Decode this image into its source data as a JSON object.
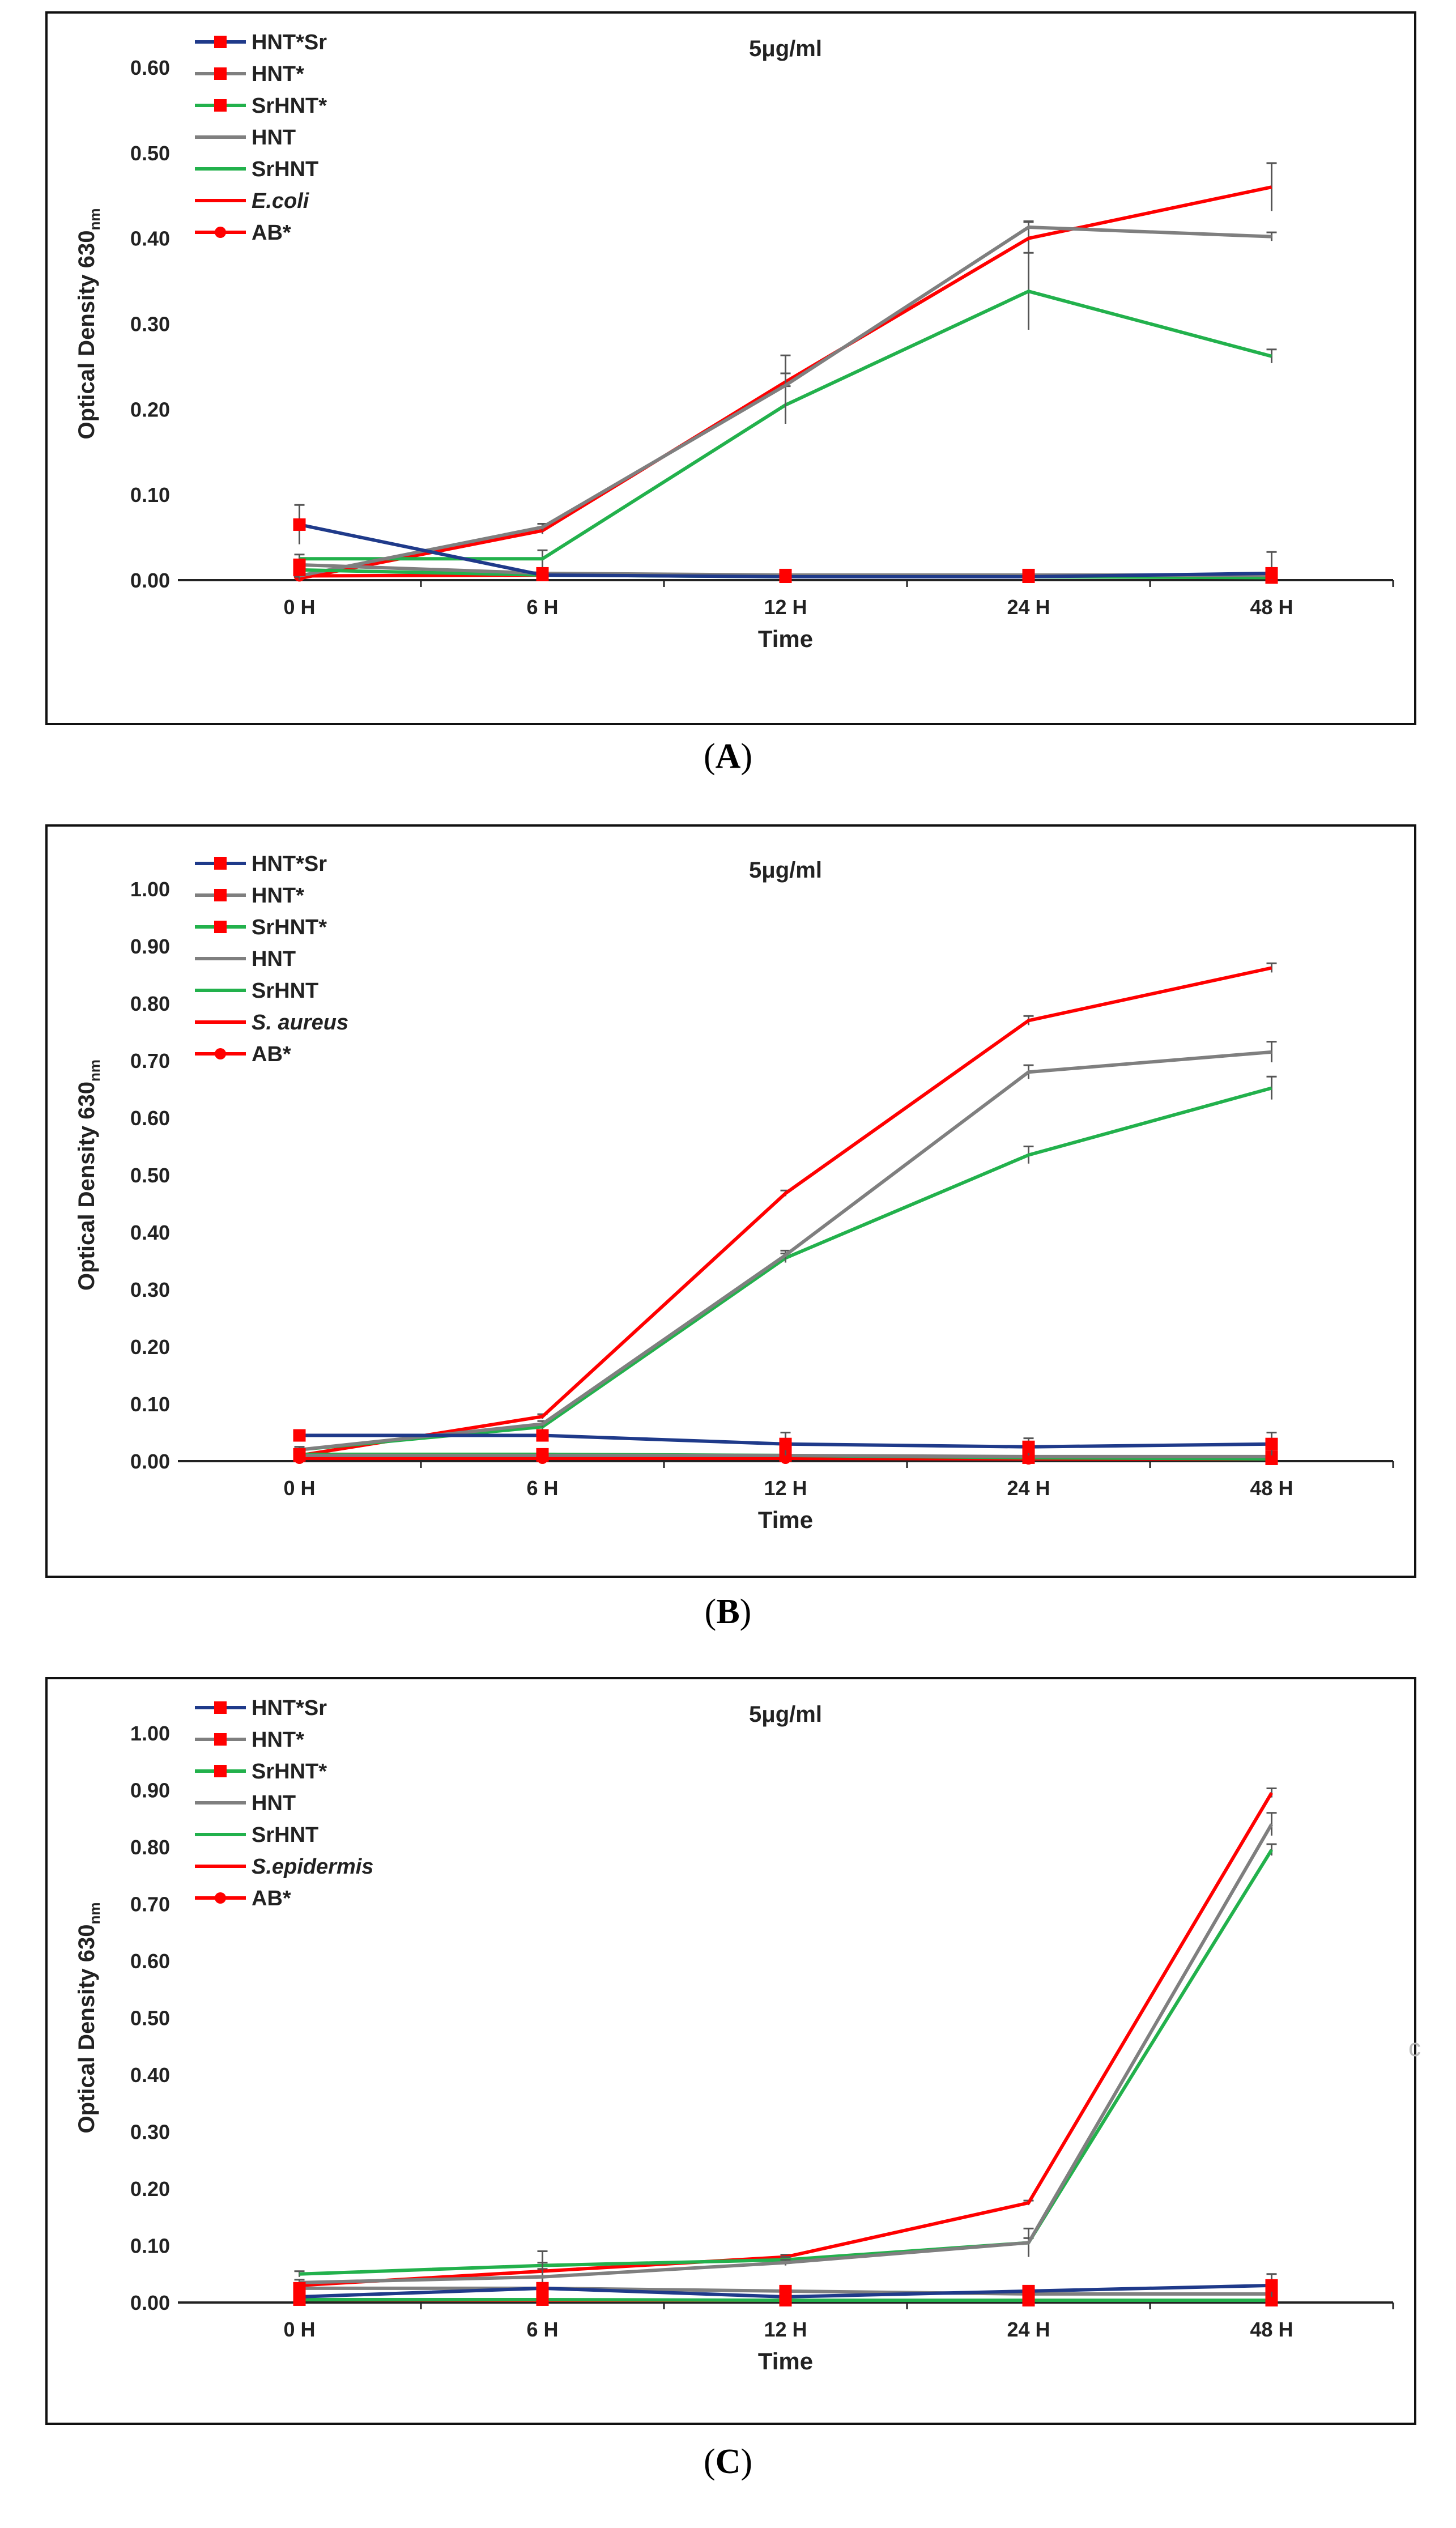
{
  "figure": {
    "captions": [
      {
        "open": "(",
        "letter": "A",
        "close": ")"
      },
      {
        "open": "(",
        "letter": "B",
        "close": ")"
      },
      {
        "open": "(",
        "letter": "C",
        "close": ")"
      }
    ],
    "stray_mark": "c"
  },
  "colors": {
    "HNT*Sr": "#1f3a8a",
    "HNT*": "#7f7f7f",
    "SrHNT*": "#22b14c",
    "HNT": "#7f7f7f",
    "SrHNT": "#22b14c",
    "bacteria": "#ff0000",
    "AB*": "#ff0000",
    "marker": "#ff0000",
    "errorbar": "#555555"
  },
  "chart_data": [
    {
      "type": "line",
      "title": "5μg/ml",
      "xlabel": "Time",
      "ylabel": "Optical Density 630",
      "ylabel_sub": "nm",
      "ylim": [
        0,
        0.6
      ],
      "yticks": [
        "0.00",
        "0.10",
        "0.20",
        "0.30",
        "0.40",
        "0.50",
        "0.60"
      ],
      "categories": [
        "0 H",
        "6 H",
        "12 H",
        "24 H",
        "48 H"
      ],
      "legend": [
        "HNT*Sr",
        "HNT*",
        "SrHNT*",
        "HNT",
        "SrHNT",
        "E.coli",
        "AB*"
      ],
      "series": [
        {
          "name": "HNT*Sr",
          "key": "HNT*Sr",
          "marker": "square",
          "italic": false,
          "values": [
            0.065,
            0.006,
            0.004,
            0.004,
            0.008
          ],
          "err": [
            0.023,
            0.005,
            0.003,
            0.003,
            0.025
          ]
        },
        {
          "name": "HNT*",
          "key": "HNT*",
          "marker": "square",
          "italic": false,
          "values": [
            0.018,
            0.008,
            0.006,
            0.006,
            0.006
          ],
          "err": [
            0.005,
            0.003,
            0.003,
            0.003,
            0.003
          ]
        },
        {
          "name": "SrHNT*",
          "key": "SrHNT*",
          "marker": "square",
          "italic": false,
          "values": [
            0.012,
            0.006,
            0.004,
            0.004,
            0.003
          ],
          "err": [
            0.004,
            0.003,
            0.002,
            0.002,
            0.002
          ]
        },
        {
          "name": "HNT",
          "key": "HNT",
          "marker": "none",
          "italic": false,
          "values": [
            0.005,
            0.062,
            0.228,
            0.413,
            0.402
          ],
          "err": [
            0.003,
            0.004,
            0.035,
            0.006,
            0.005
          ]
        },
        {
          "name": "SrHNT",
          "key": "SrHNT",
          "marker": "none",
          "italic": false,
          "values": [
            0.025,
            0.025,
            0.205,
            0.338,
            0.262
          ],
          "err": [
            0.005,
            0.01,
            0.022,
            0.045,
            0.008
          ]
        },
        {
          "name": "E.coli",
          "key": "bacteria",
          "marker": "none",
          "italic": true,
          "values": [
            0.002,
            0.058,
            0.232,
            0.4,
            0.46
          ],
          "err": [
            0.002,
            0.004,
            0.01,
            0.02,
            0.028
          ]
        },
        {
          "name": "AB*",
          "key": "AB*",
          "marker": "circle",
          "italic": false,
          "values": [
            0.005,
            0.006,
            0.006,
            0.006,
            0.006
          ],
          "err": [
            0.002,
            0.002,
            0.002,
            0.002,
            0.002
          ]
        }
      ]
    },
    {
      "type": "line",
      "title": "5μg/ml",
      "xlabel": "Time",
      "ylabel": "Optical Density 630",
      "ylabel_sub": "nm",
      "ylim": [
        0,
        1.0
      ],
      "yticks": [
        "0.00",
        "0.10",
        "0.20",
        "0.30",
        "0.40",
        "0.50",
        "0.60",
        "0.70",
        "0.80",
        "0.90",
        "1.00"
      ],
      "categories": [
        "0 H",
        "6 H",
        "12 H",
        "24 H",
        "48 H"
      ],
      "legend": [
        "HNT*Sr",
        "HNT*",
        "SrHNT*",
        "HNT",
        "SrHNT",
        "S. aureus",
        "AB*"
      ],
      "series": [
        {
          "name": "HNT*Sr",
          "key": "HNT*Sr",
          "marker": "square",
          "italic": false,
          "values": [
            0.045,
            0.045,
            0.03,
            0.025,
            0.03
          ],
          "err": [
            0.005,
            0.005,
            0.02,
            0.015,
            0.02
          ]
        },
        {
          "name": "HNT*",
          "key": "HNT*",
          "marker": "square",
          "italic": false,
          "values": [
            0.01,
            0.01,
            0.01,
            0.008,
            0.008
          ],
          "err": [
            0.004,
            0.004,
            0.006,
            0.005,
            0.005
          ]
        },
        {
          "name": "SrHNT*",
          "key": "SrHNT*",
          "marker": "square",
          "italic": false,
          "values": [
            0.012,
            0.012,
            0.01,
            0.006,
            0.004
          ],
          "err": [
            0.004,
            0.004,
            0.003,
            0.003,
            0.003
          ]
        },
        {
          "name": "HNT",
          "key": "HNT",
          "marker": "none",
          "italic": false,
          "values": [
            0.02,
            0.065,
            0.36,
            0.68,
            0.715
          ],
          "err": [
            0.005,
            0.005,
            0.008,
            0.012,
            0.018
          ]
        },
        {
          "name": "SrHNT",
          "key": "SrHNT",
          "marker": "none",
          "italic": false,
          "values": [
            0.02,
            0.06,
            0.355,
            0.535,
            0.652
          ],
          "err": [
            0.005,
            0.005,
            0.008,
            0.015,
            0.02
          ]
        },
        {
          "name": "S. aureus",
          "key": "bacteria",
          "marker": "none",
          "italic": true,
          "values": [
            0.01,
            0.078,
            0.468,
            0.77,
            0.862
          ],
          "err": [
            0.003,
            0.004,
            0.005,
            0.008,
            0.008
          ]
        },
        {
          "name": "AB*",
          "key": "AB*",
          "marker": "circle",
          "italic": false,
          "values": [
            0.005,
            0.005,
            0.005,
            0.004,
            0.004
          ],
          "err": [
            0.002,
            0.002,
            0.002,
            0.002,
            0.002
          ]
        }
      ]
    },
    {
      "type": "line",
      "title": "5μg/ml",
      "xlabel": "Time",
      "ylabel": "Optical Density 630",
      "ylabel_sub": "nm",
      "ylim": [
        0,
        1.0
      ],
      "yticks": [
        "0.00",
        "0.10",
        "0.20",
        "0.30",
        "0.40",
        "0.50",
        "0.60",
        "0.70",
        "0.80",
        "0.90",
        "1.00"
      ],
      "categories": [
        "0 H",
        "6 H",
        "12 H",
        "24 H",
        "48 H"
      ],
      "legend": [
        "HNT*Sr",
        "HNT*",
        "SrHNT*",
        "HNT",
        "SrHNT",
        "S.epidermis",
        "AB*"
      ],
      "series": [
        {
          "name": "HNT*Sr",
          "key": "HNT*Sr",
          "marker": "square",
          "italic": false,
          "values": [
            0.01,
            0.025,
            0.01,
            0.02,
            0.03
          ],
          "err": [
            0.004,
            0.006,
            0.006,
            0.006,
            0.02
          ]
        },
        {
          "name": "HNT*",
          "key": "HNT*",
          "marker": "square",
          "italic": false,
          "values": [
            0.025,
            0.025,
            0.02,
            0.015,
            0.015
          ],
          "err": [
            0.005,
            0.006,
            0.006,
            0.006,
            0.01
          ]
        },
        {
          "name": "SrHNT*",
          "key": "SrHNT*",
          "marker": "square",
          "italic": false,
          "values": [
            0.005,
            0.005,
            0.004,
            0.004,
            0.004
          ],
          "err": [
            0.003,
            0.003,
            0.003,
            0.003,
            0.003
          ]
        },
        {
          "name": "HNT",
          "key": "HNT",
          "marker": "none",
          "italic": false,
          "values": [
            0.035,
            0.045,
            0.07,
            0.105,
            0.84
          ],
          "err": [
            0.005,
            0.045,
            0.005,
            0.025,
            0.02
          ]
        },
        {
          "name": "SrHNT",
          "key": "SrHNT",
          "marker": "none",
          "italic": false,
          "values": [
            0.05,
            0.065,
            0.075,
            0.105,
            0.795
          ],
          "err": [
            0.005,
            0.005,
            0.005,
            0.008,
            0.01
          ]
        },
        {
          "name": "S.epidermis",
          "key": "bacteria",
          "marker": "none",
          "italic": true,
          "values": [
            0.03,
            0.055,
            0.08,
            0.175,
            0.895
          ],
          "err": [
            0.003,
            0.004,
            0.004,
            0.004,
            0.008
          ]
        },
        {
          "name": "AB*",
          "key": "AB*",
          "marker": "circle",
          "italic": false,
          "values": [
            0.005,
            0.004,
            0.004,
            0.004,
            0.004
          ],
          "err": [
            0.002,
            0.002,
            0.002,
            0.002,
            0.002
          ]
        }
      ]
    }
  ]
}
